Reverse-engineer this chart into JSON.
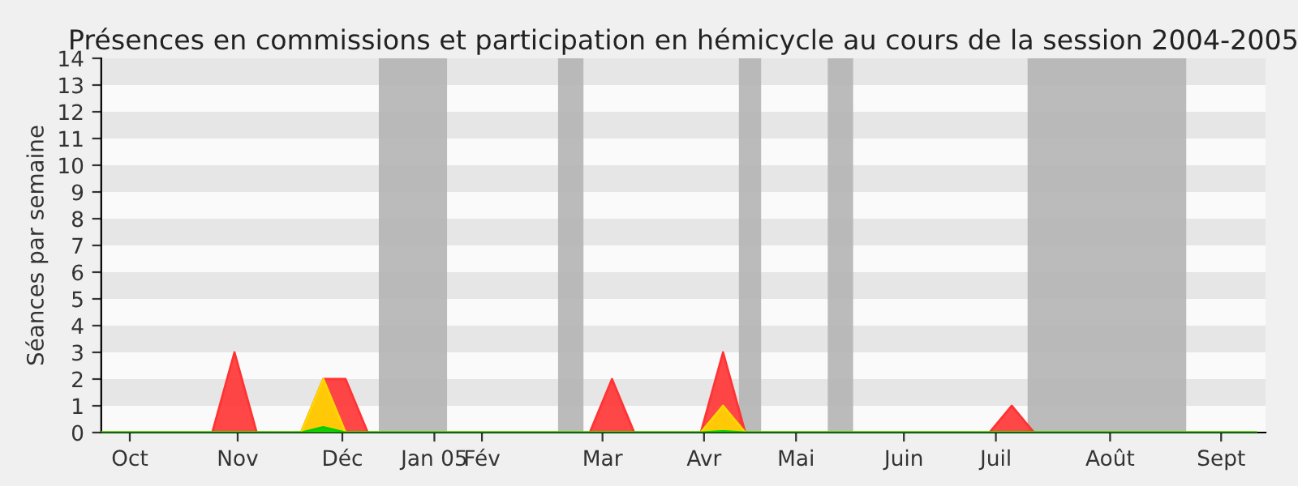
{
  "chart_data": {
    "type": "area",
    "title": "Présences en commissions et participation en hémicycle au cours de la session 2004-2005",
    "ylabel": "Séances par semaine",
    "x": [
      "2004-09-27",
      "2004-10-04",
      "2004-10-11",
      "2004-10-18",
      "2004-10-25",
      "2004-11-01",
      "2004-11-08",
      "2004-11-15",
      "2004-11-22",
      "2004-11-29",
      "2004-12-06",
      "2004-12-13",
      "2004-12-20",
      "2004-12-27",
      "2005-01-03",
      "2005-01-10",
      "2005-01-17",
      "2005-01-24",
      "2005-01-31",
      "2005-02-07",
      "2005-02-14",
      "2005-02-21",
      "2005-02-28",
      "2005-03-07",
      "2005-03-14",
      "2005-03-21",
      "2005-03-28",
      "2005-04-04",
      "2005-04-11",
      "2005-04-18",
      "2005-04-25",
      "2005-05-02",
      "2005-05-09",
      "2005-05-16",
      "2005-05-23",
      "2005-05-30",
      "2005-06-06",
      "2005-06-13",
      "2005-06-20",
      "2005-06-27",
      "2005-07-04",
      "2005-07-11",
      "2005-07-18",
      "2005-07-25",
      "2005-08-01",
      "2005-08-08",
      "2005-08-15",
      "2005-08-22",
      "2005-08-29",
      "2005-09-05",
      "2005-09-12",
      "2005-09-19",
      "2005-09-26"
    ],
    "series": [
      {
        "color": "#ff3333",
        "values": [
          0,
          0,
          0,
          0,
          0,
          0,
          3,
          0,
          0,
          0,
          2,
          2,
          0,
          0,
          0,
          0,
          0,
          0,
          0,
          0,
          0,
          0,
          0,
          2,
          0,
          0,
          0,
          0,
          3,
          0,
          0,
          0,
          0,
          0,
          0,
          0,
          0,
          0,
          0,
          0,
          0,
          1,
          0,
          0,
          0,
          0,
          0,
          0,
          0,
          0,
          0,
          0,
          0
        ]
      },
      {
        "color": "#ffd700",
        "values": [
          0,
          0,
          0,
          0,
          0,
          0,
          0,
          0,
          0,
          0,
          2,
          0,
          0,
          0,
          0,
          0,
          0,
          0,
          0,
          0,
          0,
          0,
          0,
          0,
          0,
          0,
          0,
          0,
          1,
          0,
          0,
          0,
          0,
          0,
          0,
          0,
          0,
          0,
          0,
          0,
          0,
          0,
          0,
          0,
          0,
          0,
          0,
          0,
          0,
          0,
          0,
          0,
          0
        ]
      },
      {
        "color": "#00cc00",
        "values": [
          0,
          0,
          0,
          0,
          0,
          0,
          0,
          0,
          0,
          0,
          0.2,
          0,
          0,
          0,
          0,
          0,
          0,
          0,
          0,
          0,
          0,
          0,
          0,
          0,
          0,
          0,
          0,
          0,
          0.05,
          0,
          0,
          0,
          0,
          0,
          0,
          0,
          0,
          0,
          0,
          0,
          0,
          0,
          0,
          0,
          0,
          0,
          0,
          0,
          0,
          0,
          0,
          0,
          0
        ]
      }
    ],
    "xlim": [
      "2004-09-27",
      "2005-09-29"
    ],
    "xticks": [
      {
        "value": "2004-10-06",
        "label": "Oct"
      },
      {
        "value": "2004-11-09",
        "label": "Nov"
      },
      {
        "value": "2004-12-12",
        "label": "Déc"
      },
      {
        "value": "2005-01-10",
        "label": "Jan 05"
      },
      {
        "value": "2005-01-25",
        "label": "Fév"
      },
      {
        "value": "2005-03-04",
        "label": "Mar"
      },
      {
        "value": "2005-04-05",
        "label": "Avr"
      },
      {
        "value": "2005-05-04",
        "label": "Mai"
      },
      {
        "value": "2005-06-07",
        "label": "Juin"
      },
      {
        "value": "2005-07-06",
        "label": "Juil"
      },
      {
        "value": "2005-08-11",
        "label": "Août"
      },
      {
        "value": "2005-09-15",
        "label": "Sept"
      }
    ],
    "ylim": [
      0,
      14
    ],
    "yticks": [
      0,
      1,
      2,
      3,
      4,
      5,
      6,
      7,
      8,
      9,
      10,
      11,
      12,
      13,
      14
    ],
    "bands": [
      {
        "axis": "x",
        "from": "2004-12-23T12:00",
        "to": "2005-01-14",
        "color": "#b4b4b4"
      },
      {
        "axis": "x",
        "from": "2005-02-18",
        "to": "2005-02-26",
        "color": "#b4b4b4"
      },
      {
        "axis": "x",
        "from": "2005-04-16",
        "to": "2005-04-23",
        "color": "#b4b4b4"
      },
      {
        "axis": "x",
        "from": "2005-05-14",
        "to": "2005-05-22",
        "color": "#b4b4b4"
      },
      {
        "axis": "x",
        "from": "2005-07-16",
        "to": "2005-09-04",
        "color": "#b4b4b4"
      }
    ]
  }
}
